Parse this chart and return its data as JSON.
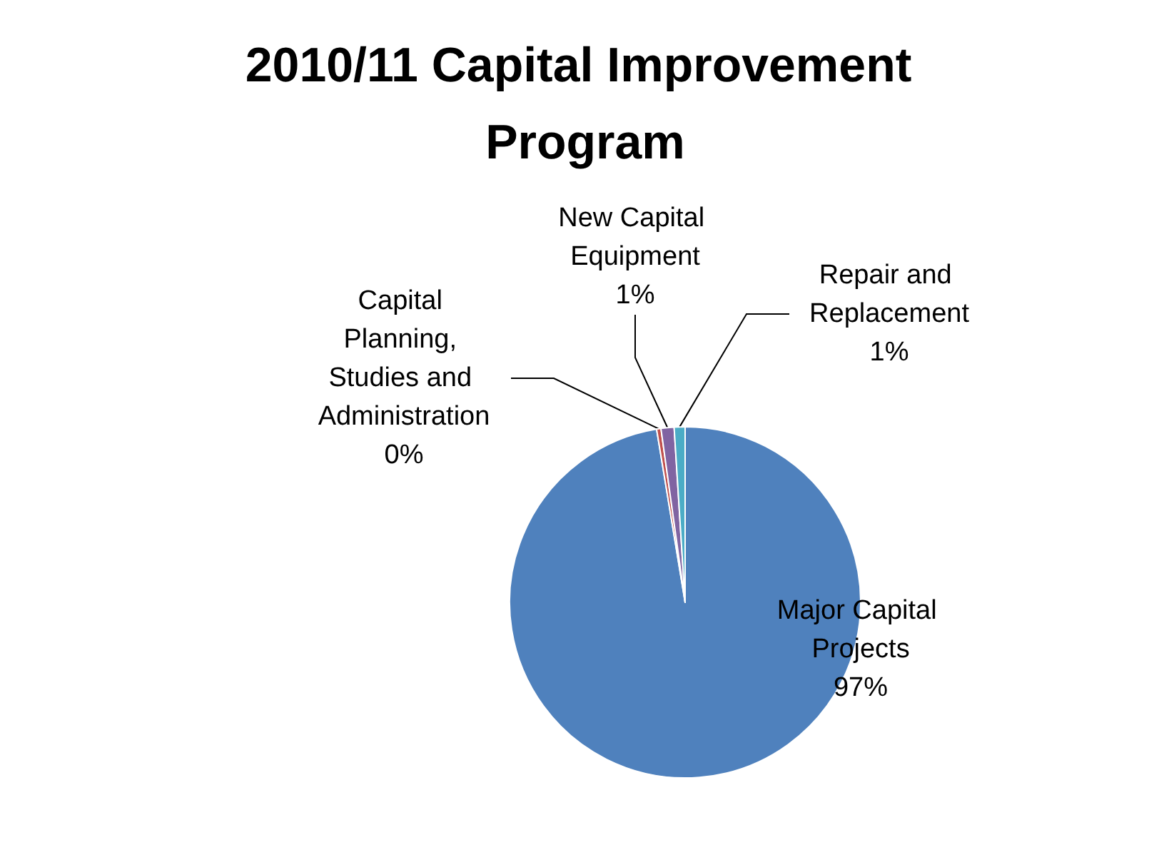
{
  "chart_data": {
    "type": "pie",
    "title": "2010/11 Capital Improvement Program",
    "categories": [
      "Major Capital Projects",
      "Capital Planning, Studies and Administration",
      "New Capital Equipment",
      "Repair and Replacement"
    ],
    "values": [
      97.4,
      0.4,
      1.2,
      1.0
    ],
    "colors": [
      "#4f81bd",
      "#c0504d",
      "#8064a2",
      "#4bacc6"
    ],
    "value_labels": [
      "97%",
      "0%",
      "1%",
      "1%"
    ],
    "legend": false
  }
}
